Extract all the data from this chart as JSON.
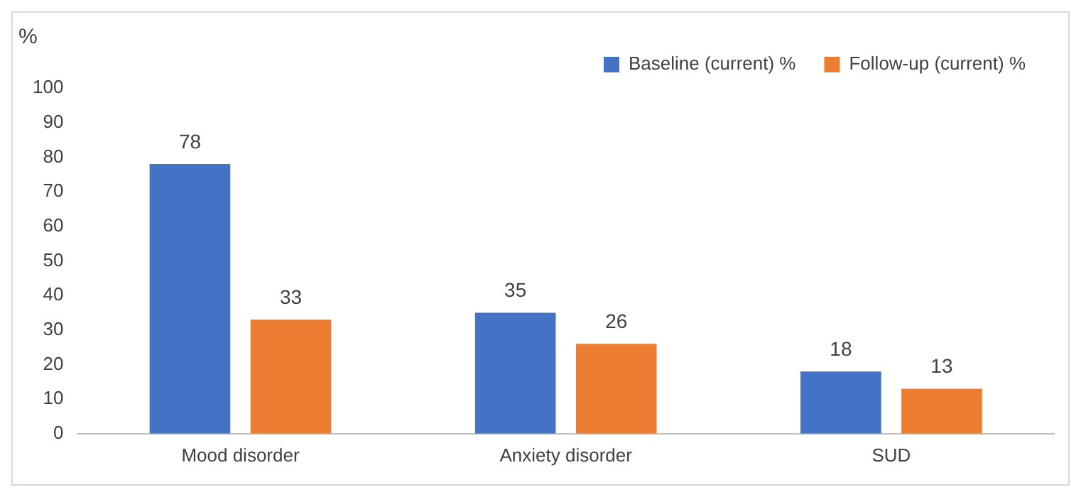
{
  "chart_data": {
    "type": "bar",
    "ylabel": "%",
    "categories": [
      "Mood disorder",
      "Anxiety disorder",
      "SUD"
    ],
    "series": [
      {
        "name": "Baseline (current) %",
        "color": "#4472c4",
        "values": [
          78,
          35,
          18
        ]
      },
      {
        "name": "Follow-up (current) %",
        "color": "#ed7d31",
        "values": [
          33,
          26,
          13
        ]
      }
    ],
    "ylim": [
      0,
      100
    ],
    "yticks": [
      0,
      10,
      20,
      30,
      40,
      50,
      60,
      70,
      80,
      90,
      100
    ],
    "grid": false,
    "legend": "top right",
    "data_labels": true
  }
}
